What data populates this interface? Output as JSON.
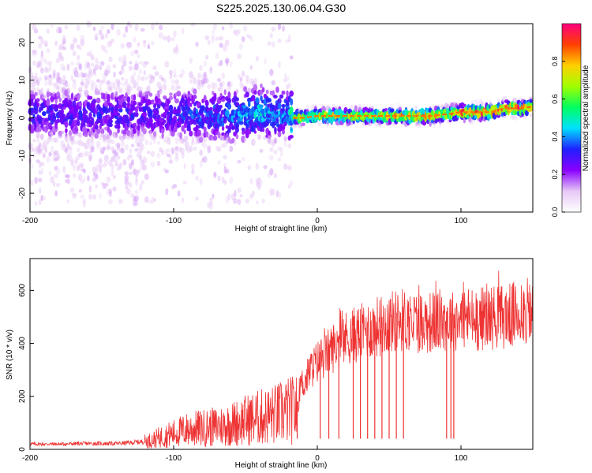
{
  "figure_title": "S225.2025.130.06.04.G30",
  "chart_data": [
    {
      "type": "heatmap",
      "title": "",
      "xlabel": "Height of straight line (km)",
      "ylabel": "Frequency (Hz)",
      "xlim": [
        -200,
        150
      ],
      "ylim": [
        -25,
        25
      ],
      "x_ticks": [
        -200,
        -100,
        0,
        100
      ],
      "y_ticks": [
        -20,
        -10,
        0,
        10,
        20
      ],
      "colorbar": {
        "label": "Normalized spectral amplitude",
        "range": [
          0,
          1
        ],
        "ticks": [
          "0.0",
          "0.2",
          "0.4",
          "0.6",
          "0.8"
        ],
        "colors": [
          "#ffffff",
          "#e6c8f5",
          "#8a00ff",
          "#2020ff",
          "#00e0ff",
          "#00ff60",
          "#a0ff00",
          "#ffd000",
          "#ff4000",
          "#ff0080"
        ]
      },
      "x": [
        -200,
        -190,
        -180,
        -170,
        -160,
        -150,
        -140,
        -130,
        -120,
        -110,
        -100,
        -90,
        -80,
        -70,
        -60,
        -50,
        -40,
        -30,
        -20,
        -17,
        -10,
        0,
        10,
        20,
        30,
        40,
        50,
        60,
        70,
        80,
        90,
        100,
        110,
        120,
        130,
        140,
        150
      ],
      "peak_frequency": [
        1,
        1,
        1,
        1,
        1,
        1,
        1,
        1,
        1,
        1,
        1,
        1,
        0.5,
        0.5,
        0.5,
        1,
        1.5,
        1,
        1,
        0,
        0,
        0.5,
        0.5,
        0.5,
        0.5,
        0.5,
        0.5,
        0.5,
        0.5,
        0.5,
        1,
        1.5,
        1.5,
        1.5,
        2.5,
        2.5,
        3
      ],
      "peak_amplitude": [
        0.3,
        0.3,
        0.3,
        0.3,
        0.3,
        0.3,
        0.3,
        0.3,
        0.3,
        0.3,
        0.3,
        0.35,
        0.35,
        0.35,
        0.4,
        0.4,
        0.45,
        0.4,
        0.4,
        0.6,
        0.65,
        0.7,
        0.75,
        0.75,
        0.7,
        0.7,
        0.75,
        0.8,
        0.85,
        0.8,
        0.8,
        0.85,
        0.9,
        0.9,
        0.9,
        0.9,
        0.85
      ]
    },
    {
      "type": "line",
      "title": "",
      "xlabel": "Height of straight line (km)",
      "ylabel": "SNR (10 * v/v)",
      "xlim": [
        -200,
        150
      ],
      "ylim": [
        0,
        720
      ],
      "x_ticks": [
        -200,
        -100,
        0,
        100
      ],
      "y_ticks": [
        0,
        200,
        400,
        600
      ],
      "series_color": "#ee3333",
      "x": [
        -200,
        -180,
        -160,
        -140,
        -130,
        -120,
        -115,
        -110,
        -100,
        -90,
        -80,
        -70,
        -60,
        -50,
        -40,
        -30,
        -20,
        -14,
        -12,
        -8,
        -5,
        0,
        5,
        10,
        15,
        20,
        30,
        40,
        50,
        60,
        70,
        80,
        90,
        95,
        100,
        110,
        120,
        130,
        140,
        145,
        150
      ],
      "values": [
        20,
        20,
        22,
        22,
        25,
        30,
        35,
        45,
        60,
        75,
        80,
        85,
        95,
        110,
        120,
        130,
        145,
        150,
        240,
        260,
        300,
        330,
        350,
        380,
        400,
        420,
        440,
        460,
        480,
        490,
        480,
        480,
        490,
        480,
        500,
        490,
        500,
        500,
        510,
        520,
        510
      ],
      "dropouts_x": [
        -14,
        2,
        8,
        15,
        25,
        30,
        35,
        40,
        45,
        50,
        55,
        60,
        90,
        93,
        95
      ]
    }
  ]
}
